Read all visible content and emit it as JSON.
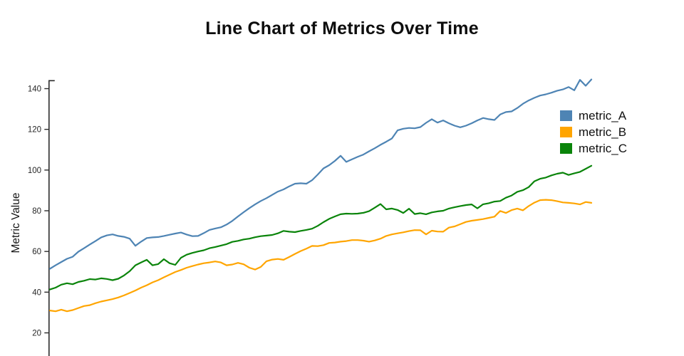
{
  "chart_data": {
    "type": "line",
    "title": "Line Chart of Metrics Over Time",
    "xlabel": "",
    "ylabel": "Metric Value",
    "yticks": [
      20,
      40,
      60,
      80,
      100,
      120,
      140
    ],
    "ylim_visible": [
      8,
      146
    ],
    "grid": false,
    "legend_position": "right",
    "axis_color": "#2b2b2b",
    "tick_label_color": "#262626",
    "x": "index 0..95 (x-axis cropped out of view)",
    "series": [
      {
        "name": "metric_A",
        "color": "#4E84B4",
        "values": [
          51.5,
          53.2,
          54.8,
          56.4,
          57.4,
          59.9,
          61.6,
          63.4,
          65.1,
          66.9,
          67.9,
          68.4,
          67.6,
          67.2,
          66.3,
          62.8,
          64.8,
          66.6,
          66.9,
          67.1,
          67.6,
          68.2,
          68.8,
          69.3,
          68.3,
          67.5,
          67.6,
          69.0,
          70.6,
          71.3,
          71.9,
          73.2,
          75.0,
          77.2,
          79.3,
          81.3,
          83.1,
          84.8,
          86.2,
          87.8,
          89.4,
          90.5,
          92.0,
          93.3,
          93.5,
          93.3,
          95.0,
          97.8,
          100.8,
          102.4,
          104.5,
          107.0,
          104.0,
          105.3,
          106.5,
          107.6,
          109.2,
          110.7,
          112.4,
          113.9,
          115.5,
          119.5,
          120.3,
          120.7,
          120.5,
          121.1,
          123.2,
          125.0,
          123.3,
          124.4,
          123.0,
          121.8,
          121.0,
          121.8,
          123.0,
          124.4,
          125.6,
          125.0,
          124.6,
          127.3,
          128.5,
          128.8,
          130.5,
          132.6,
          134.2,
          135.5,
          136.6,
          137.2,
          138.0,
          139.0,
          139.6,
          140.8,
          139.2,
          144.3,
          141.4,
          144.5
        ]
      },
      {
        "name": "metric_B",
        "color": "#FFA500",
        "values": [
          31.0,
          30.6,
          31.4,
          30.6,
          31.2,
          32.2,
          33.2,
          33.6,
          34.6,
          35.4,
          36.0,
          36.6,
          37.4,
          38.4,
          39.6,
          40.8,
          42.2,
          43.4,
          44.8,
          45.9,
          47.3,
          48.6,
          49.9,
          50.9,
          52.0,
          52.8,
          53.6,
          54.2,
          54.6,
          55.1,
          54.6,
          53.2,
          53.6,
          54.4,
          53.7,
          52.0,
          51.1,
          52.4,
          55.2,
          56.0,
          56.3,
          55.9,
          57.3,
          58.8,
          60.2,
          61.4,
          62.7,
          62.6,
          63.1,
          64.2,
          64.4,
          64.8,
          65.1,
          65.6,
          65.6,
          65.3,
          64.8,
          65.4,
          66.3,
          67.6,
          68.4,
          68.9,
          69.4,
          70.0,
          70.5,
          70.4,
          68.4,
          70.2,
          69.8,
          69.7,
          71.7,
          72.3,
          73.4,
          74.5,
          75.1,
          75.5,
          75.9,
          76.5,
          77.1,
          79.9,
          78.9,
          80.3,
          81.1,
          80.2,
          82.3,
          84.0,
          85.2,
          85.4,
          85.2,
          84.7,
          84.1,
          83.9,
          83.6,
          83.1,
          84.3,
          83.9
        ]
      },
      {
        "name": "metric_C",
        "color": "#0A840A",
        "values": [
          41.3,
          42.2,
          43.7,
          44.4,
          43.9,
          45.0,
          45.6,
          46.4,
          46.2,
          46.8,
          46.5,
          45.9,
          46.6,
          48.2,
          50.3,
          53.2,
          54.6,
          55.9,
          53.2,
          53.8,
          56.2,
          54.2,
          53.4,
          56.9,
          58.4,
          59.3,
          60.0,
          60.6,
          61.6,
          62.2,
          62.9,
          63.6,
          64.7,
          65.2,
          65.9,
          66.3,
          67.0,
          67.5,
          67.8,
          68.1,
          68.9,
          70.1,
          69.7,
          69.5,
          70.1,
          70.6,
          71.2,
          72.6,
          74.4,
          76.0,
          77.2,
          78.3,
          78.6,
          78.5,
          78.6,
          79.0,
          79.8,
          81.5,
          83.3,
          80.7,
          81.1,
          80.4,
          78.9,
          81.0,
          78.4,
          78.8,
          78.3,
          79.2,
          79.7,
          80.0,
          81.1,
          81.7,
          82.3,
          82.8,
          83.1,
          81.2,
          83.2,
          83.7,
          84.5,
          84.8,
          86.4,
          87.5,
          89.3,
          90.1,
          91.6,
          94.5,
          95.7,
          96.3,
          97.4,
          98.2,
          98.7,
          97.6,
          98.4,
          99.1,
          100.6,
          102.1
        ]
      }
    ]
  }
}
